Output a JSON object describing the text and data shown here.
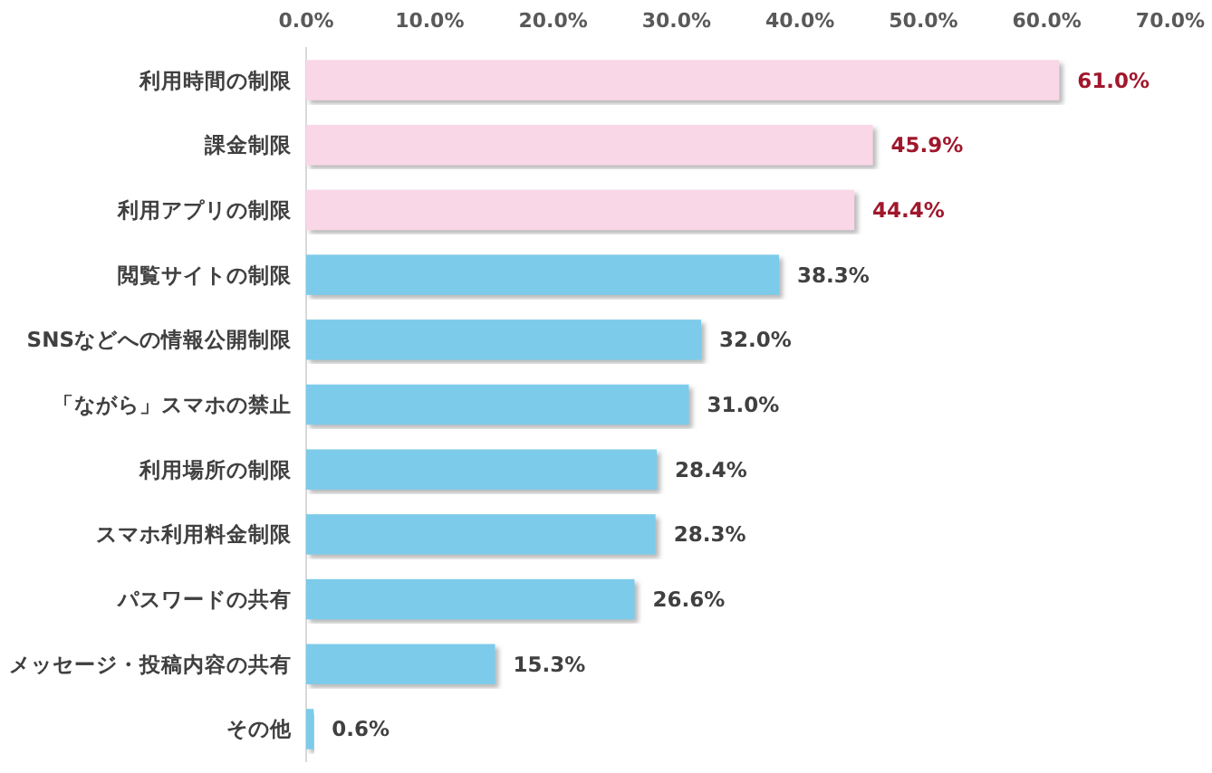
{
  "chart_data": {
    "type": "bar",
    "orientation": "horizontal",
    "categories": [
      "利用時間の制限",
      "課金制限",
      "利用アプリの制限",
      "閲覧サイトの制限",
      "SNSなどへの情報公開制限",
      "「ながら」スマホの禁止",
      "利用場所の制限",
      "スマホ利用料金制限",
      "パスワードの共有",
      "メッセージ・投稿内容の共有",
      "その他"
    ],
    "values": [
      61.0,
      45.9,
      44.4,
      38.3,
      32.0,
      31.0,
      28.4,
      28.3,
      26.6,
      15.3,
      0.6
    ],
    "colors": [
      "#f9d7e7",
      "#f9d7e7",
      "#f9d7e7",
      "#7ccbea",
      "#7ccbea",
      "#7ccbea",
      "#7ccbea",
      "#7ccbea",
      "#7ccbea",
      "#7ccbea",
      "#7ccbea"
    ],
    "value_labels": [
      "61.0%",
      "45.9%",
      "44.4%",
      "38.3%",
      "32.0%",
      "31.0%",
      "28.4%",
      "28.3%",
      "26.6%",
      "15.3%",
      "0.6%"
    ],
    "xlim": [
      0,
      70
    ],
    "xticks": [
      {
        "value": 0,
        "label": "0.0%"
      },
      {
        "value": 10,
        "label": "10.0%"
      },
      {
        "value": 20,
        "label": "20.0%"
      },
      {
        "value": 30,
        "label": "30.0%"
      },
      {
        "value": 40,
        "label": "40.0%"
      },
      {
        "value": 50,
        "label": "50.0%"
      },
      {
        "value": 60,
        "label": "60.0%"
      },
      {
        "value": 70,
        "label": "70.0%"
      }
    ],
    "grid": false
  }
}
